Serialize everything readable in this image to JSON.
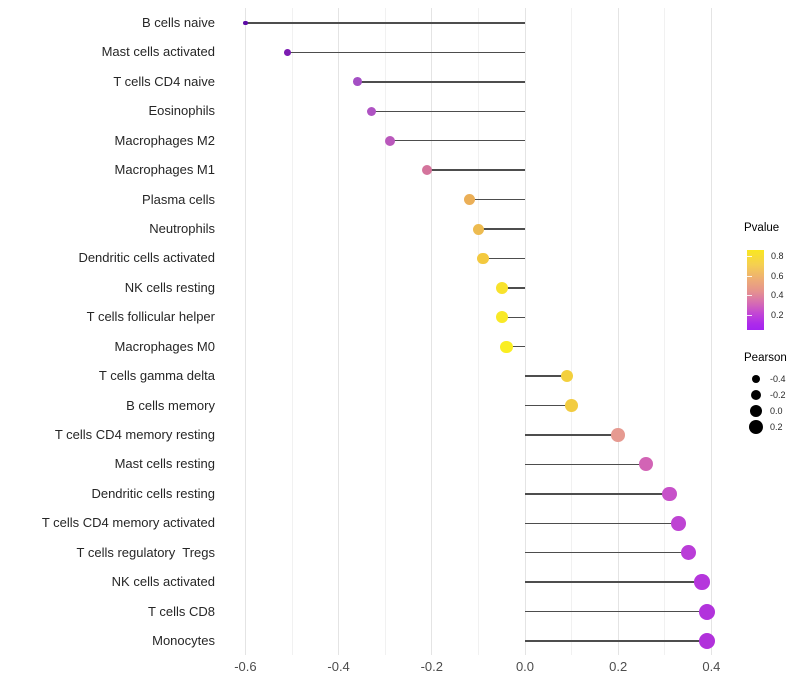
{
  "chart_data": {
    "type": "lollipop",
    "orientation": "horizontal",
    "title": "",
    "xlabel": "",
    "ylabel": "",
    "x_tick_labels": [
      "-0.6",
      "-0.4",
      "-0.2",
      "0.0",
      "0.2",
      "0.4"
    ],
    "x_tick_values": [
      -0.6,
      -0.4,
      -0.2,
      0.0,
      0.2,
      0.4
    ],
    "xlim": [
      -0.65,
      0.46
    ],
    "grid": {
      "vertical_step": 0.1,
      "horizontal": false
    },
    "baseline": 0.0,
    "points": [
      {
        "label": "B cells naive",
        "pearson": -0.6,
        "color": "#5d0ca6",
        "dot_radius": 2.2
      },
      {
        "label": "Mast cells activated",
        "pearson": -0.51,
        "color": "#7c1db2",
        "dot_radius": 3.4
      },
      {
        "label": "T cells CD4 naive",
        "pearson": -0.36,
        "color": "#a44fc4",
        "dot_radius": 4.4
      },
      {
        "label": "Eosinophils",
        "pearson": -0.33,
        "color": "#af53c3",
        "dot_radius": 4.6
      },
      {
        "label": "Macrophages M2",
        "pearson": -0.29,
        "color": "#ba58bc",
        "dot_radius": 5.0
      },
      {
        "label": "Macrophages M1",
        "pearson": -0.21,
        "color": "#d4749c",
        "dot_radius": 5.2
      },
      {
        "label": "Plasma cells",
        "pearson": -0.12,
        "color": "#ebaf57",
        "dot_radius": 5.5
      },
      {
        "label": "Neutrophils",
        "pearson": -0.1,
        "color": "#edbb50",
        "dot_radius": 5.5
      },
      {
        "label": "Dendritic cells activated",
        "pearson": -0.09,
        "color": "#f3c93f",
        "dot_radius": 5.8
      },
      {
        "label": "NK cells resting",
        "pearson": -0.05,
        "color": "#f8e22c",
        "dot_radius": 6.0
      },
      {
        "label": "T cells follicular helper",
        "pearson": -0.05,
        "color": "#f9e927",
        "dot_radius": 6.2
      },
      {
        "label": "Macrophages M0",
        "pearson": -0.04,
        "color": "#faee21",
        "dot_radius": 6.2
      },
      {
        "label": "T cells gamma delta",
        "pearson": 0.09,
        "color": "#f3d03d",
        "dot_radius": 6.2
      },
      {
        "label": "B cells memory",
        "pearson": 0.1,
        "color": "#f2cc41",
        "dot_radius": 6.4
      },
      {
        "label": "T cells CD4 memory resting",
        "pearson": 0.2,
        "color": "#e69a91",
        "dot_radius": 6.8
      },
      {
        "label": "Mast cells resting",
        "pearson": 0.26,
        "color": "#d264b5",
        "dot_radius": 7.0
      },
      {
        "label": "Dendritic cells resting",
        "pearson": 0.31,
        "color": "#c751c9",
        "dot_radius": 7.2
      },
      {
        "label": "T cells CD4 memory activated",
        "pearson": 0.33,
        "color": "#be44d3",
        "dot_radius": 7.4
      },
      {
        "label": "T cells regulatory  Tregs",
        "pearson": 0.35,
        "color": "#ba3dd8",
        "dot_radius": 7.6
      },
      {
        "label": "NK cells activated",
        "pearson": 0.38,
        "color": "#b536dc",
        "dot_radius": 7.8
      },
      {
        "label": "T cells CD8",
        "pearson": 0.39,
        "color": "#b233dc",
        "dot_radius": 8.0
      },
      {
        "label": "Monocytes",
        "pearson": 0.39,
        "color": "#b131db",
        "dot_radius": 8.0
      }
    ],
    "legends": {
      "pvalue": {
        "title": "Pvalue",
        "tick_labels": [
          "0.8",
          "0.6",
          "0.4",
          "0.2"
        ],
        "gradient": [
          {
            "pos": 0,
            "color": "#f9e721"
          },
          {
            "pos": 18,
            "color": "#f5d050"
          },
          {
            "pos": 36,
            "color": "#eeae74"
          },
          {
            "pos": 52,
            "color": "#e5928f"
          },
          {
            "pos": 66,
            "color": "#d66db2"
          },
          {
            "pos": 80,
            "color": "#c145d6"
          },
          {
            "pos": 92,
            "color": "#ad2bea"
          },
          {
            "pos": 100,
            "color": "#a424f0"
          }
        ]
      },
      "pearson": {
        "title": "Pearson",
        "items": [
          {
            "label": "-0.4",
            "radius": 4.2
          },
          {
            "label": "-0.2",
            "radius": 5.0
          },
          {
            "label": "0.0",
            "radius": 6.2
          },
          {
            "label": "0.2",
            "radius": 7.2
          }
        ]
      }
    }
  }
}
